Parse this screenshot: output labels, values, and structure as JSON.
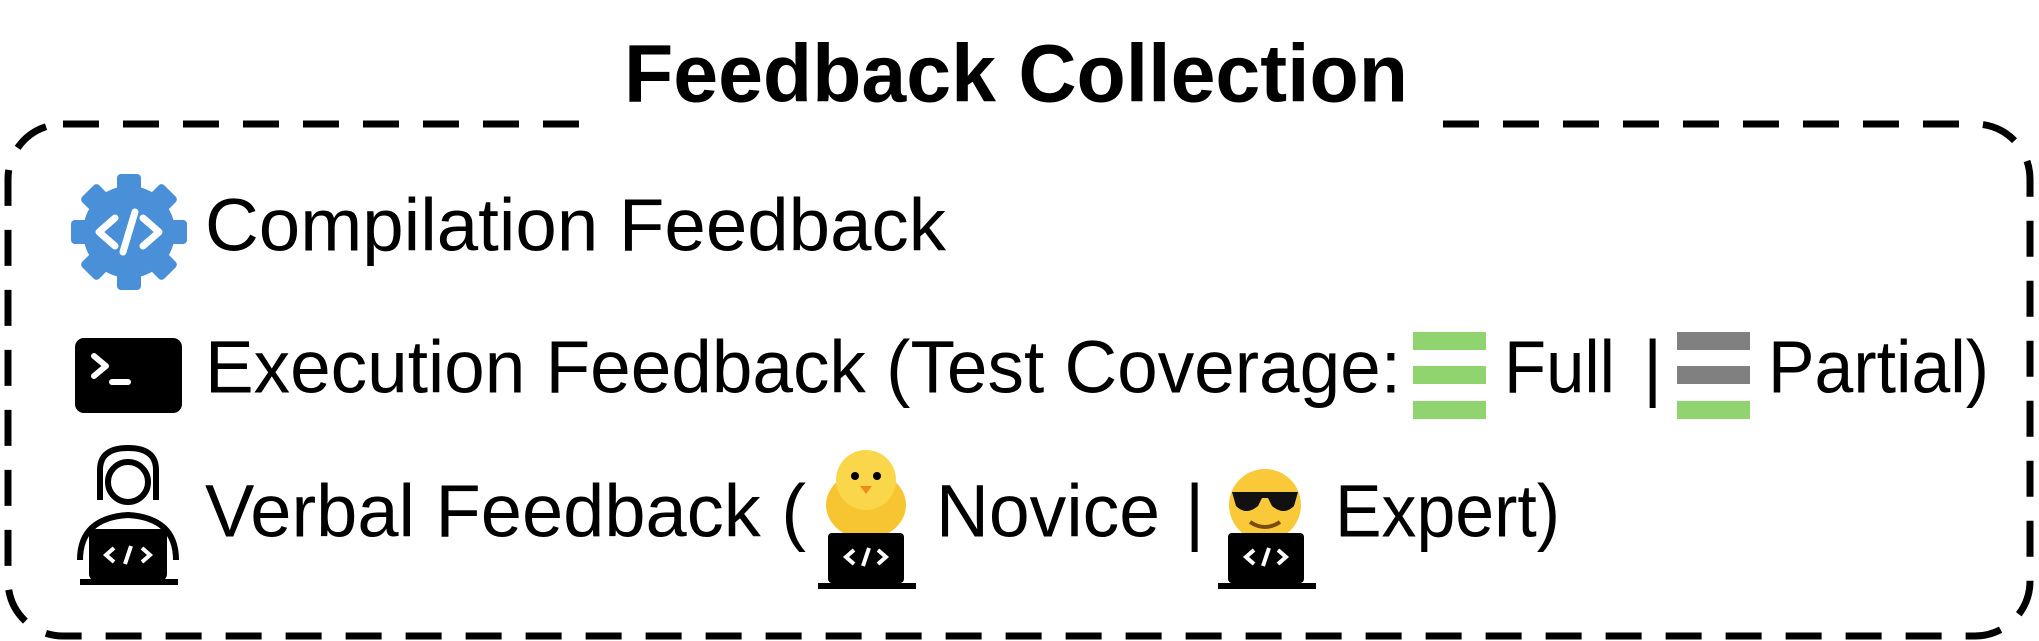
{
  "title": "Feedback Collection",
  "rows": [
    {
      "label": "Compilation Feedback"
    },
    {
      "label": "Execution Feedback (Test Coverage:",
      "option_a": "Full",
      "separator": "|",
      "option_b": "Partial)"
    },
    {
      "label": "Verbal Feedback (",
      "option_a": "Novice",
      "separator": "|",
      "option_b": "Expert)"
    }
  ]
}
